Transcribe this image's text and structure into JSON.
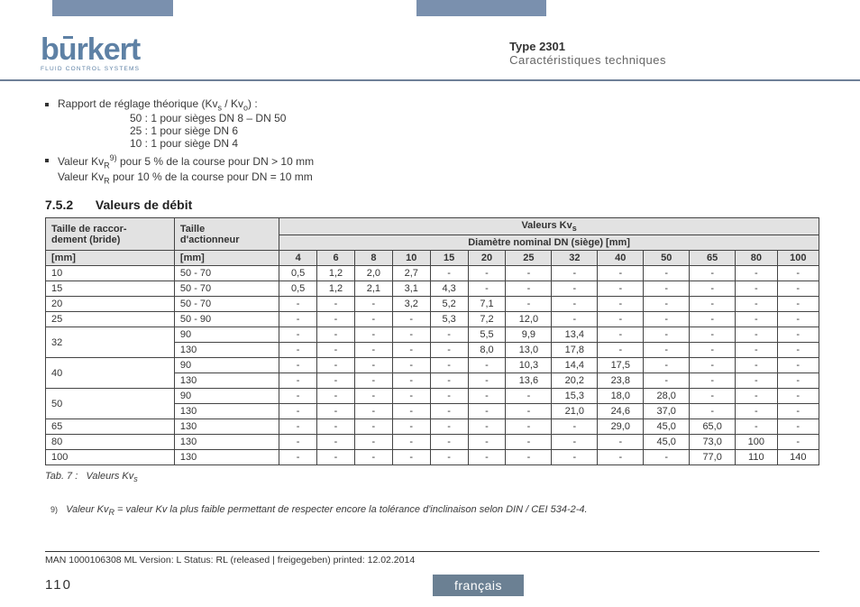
{
  "colors": {
    "bar": "#7a90ae",
    "logo": "#5e81a5",
    "rule": "#6e8098",
    "table_header_bg": "#e2e2e2",
    "lang_bg": "#6b8093",
    "text": "#3a3a3a"
  },
  "header": {
    "logo_text": "burkert",
    "logo_sub": "FLUID CONTROL SYSTEMS",
    "type_title": "Type 2301",
    "type_sub": "Caractéristiques techniques"
  },
  "bullets": {
    "rapport_intro": "Rapport de réglage théorique (Kv",
    "rapport_mid": " / Kv",
    "rapport_end": ") :",
    "line1": "50 : 1 pour sièges DN 8 – DN 50",
    "line2": "25 : 1 pour siège DN 6",
    "line3": "10 : 1 pour siège DN 4",
    "valeur_a": "Valeur Kv",
    "valeur_a_sup": "9)",
    "valeur_a_end": " pour 5 % de la course pour DN > 10 mm",
    "valeur_b": "Valeur Kv",
    "valeur_b_end": " pour 10 % de la course pour DN = 10 mm"
  },
  "section": {
    "num": "7.5.2",
    "title": "Valeurs de débit"
  },
  "table": {
    "h_raccord": "Taille de raccor-\ndement (bride)",
    "h_action": "Taille\nd'actionneur",
    "h_valeurs": "Valeurs Kv",
    "h_diam": "Diamètre nominal DN (siège) [mm]",
    "unit_mm": "[mm]",
    "dn_cols": [
      "4",
      "6",
      "8",
      "10",
      "15",
      "20",
      "25",
      "32",
      "40",
      "50",
      "65",
      "80",
      "100"
    ],
    "rows": [
      {
        "r": "10",
        "a": "50 - 70",
        "v": [
          "0,5",
          "1,2",
          "2,0",
          "2,7",
          "-",
          "-",
          "-",
          "-",
          "-",
          "-",
          "-",
          "-",
          "-"
        ]
      },
      {
        "r": "15",
        "a": "50 - 70",
        "v": [
          "0,5",
          "1,2",
          "2,1",
          "3,1",
          "4,3",
          "-",
          "-",
          "-",
          "-",
          "-",
          "-",
          "-",
          "-"
        ]
      },
      {
        "r": "20",
        "a": "50 - 70",
        "v": [
          "-",
          "-",
          "-",
          "3,2",
          "5,2",
          "7,1",
          "-",
          "-",
          "-",
          "-",
          "-",
          "-",
          "-"
        ]
      },
      {
        "r": "25",
        "a": "50 - 90",
        "v": [
          "-",
          "-",
          "-",
          "-",
          "5,3",
          "7,2",
          "12,0",
          "-",
          "-",
          "-",
          "-",
          "-",
          "-"
        ]
      },
      {
        "r": "32",
        "a": "90",
        "v": [
          "-",
          "-",
          "-",
          "-",
          "-",
          "5,5",
          "9,9",
          "13,4",
          "-",
          "-",
          "-",
          "-",
          "-"
        ]
      },
      {
        "r": "",
        "a": "130",
        "v": [
          "-",
          "-",
          "-",
          "-",
          "-",
          "8,0",
          "13,0",
          "17,8",
          "-",
          "-",
          "-",
          "-",
          "-"
        ]
      },
      {
        "r": "40",
        "a": "90",
        "v": [
          "-",
          "-",
          "-",
          "-",
          "-",
          "-",
          "10,3",
          "14,4",
          "17,5",
          "-",
          "-",
          "-",
          "-"
        ]
      },
      {
        "r": "",
        "a": "130",
        "v": [
          "-",
          "-",
          "-",
          "-",
          "-",
          "-",
          "13,6",
          "20,2",
          "23,8",
          "-",
          "-",
          "-",
          "-"
        ]
      },
      {
        "r": "50",
        "a": "90",
        "v": [
          "-",
          "-",
          "-",
          "-",
          "-",
          "-",
          "-",
          "15,3",
          "18,0",
          "28,0",
          "-",
          "-",
          "-"
        ]
      },
      {
        "r": "",
        "a": "130",
        "v": [
          "-",
          "-",
          "-",
          "-",
          "-",
          "-",
          "-",
          "21,0",
          "24,6",
          "37,0",
          "-",
          "-",
          "-"
        ]
      },
      {
        "r": "65",
        "a": "130",
        "v": [
          "-",
          "-",
          "-",
          "-",
          "-",
          "-",
          "-",
          "-",
          "29,0",
          "45,0",
          "65,0",
          "-",
          "-"
        ]
      },
      {
        "r": "80",
        "a": "130",
        "v": [
          "-",
          "-",
          "-",
          "-",
          "-",
          "-",
          "-",
          "-",
          "-",
          "45,0",
          "73,0",
          "100",
          "-"
        ]
      },
      {
        "r": "100",
        "a": "130",
        "v": [
          "-",
          "-",
          "-",
          "-",
          "-",
          "-",
          "-",
          "-",
          "-",
          "-",
          "77,0",
          "110",
          "140"
        ]
      }
    ],
    "rowspan_indices": {
      "4": 2,
      "6": 2,
      "8": 2
    },
    "caption_prefix": "Tab. 7 :",
    "caption": "Valeurs Kv"
  },
  "footnote": {
    "num": "9)",
    "pre": "Valeur Kv",
    "post": " = valeur Kv la plus faible permettant de respecter encore la tolérance d'inclinaison selon DIN / CEI 534-2-4."
  },
  "footer": {
    "line": "MAN 1000106308 ML Version: L Status: RL (released | freigegeben) printed: 12.02.2014",
    "page": "110",
    "lang": "français"
  }
}
